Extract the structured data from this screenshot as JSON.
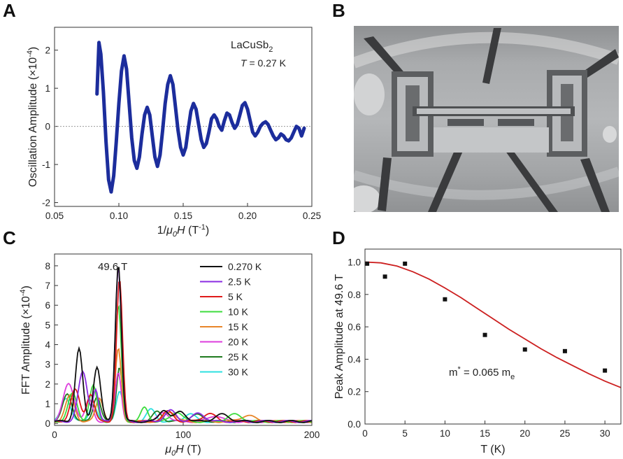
{
  "panels": [
    {
      "label": "A"
    },
    {
      "label": "B"
    },
    {
      "label": "C"
    },
    {
      "label": "D"
    }
  ],
  "colors": {
    "panel_a_line": "#1c2d9c",
    "zero_line": "#999999",
    "fit_line": "#cc1f1f",
    "points": "#111111",
    "sem_background": "#9a9c9e"
  },
  "chart_data": [
    {
      "panel": "A",
      "type": "line",
      "xlabel_parts": [
        "1/",
        "μ",
        "0",
        "H",
        " (T",
        "-1",
        ")"
      ],
      "ylabel_parts": [
        "Oscillation Amplitude (×10",
        "-4",
        ")"
      ],
      "xlim": [
        0.05,
        0.25
      ],
      "ylim": [
        -2.1,
        2.6
      ],
      "xticks": [
        0.05,
        0.1,
        0.15,
        0.2,
        0.25
      ],
      "xtick_labels": [
        "0.05",
        "0.10",
        "0.15",
        "0.20",
        "0.25"
      ],
      "yticks": [
        -2,
        -1,
        0,
        1,
        2
      ],
      "ytick_labels": [
        "-2",
        "-1",
        "0",
        "1",
        "2"
      ],
      "annotations": {
        "compound_parts": [
          "LaCuSb",
          "2"
        ],
        "temp_parts": [
          "T",
          " = 0.27 K"
        ]
      },
      "zero_reference_line": true,
      "series": [
        {
          "x": [
            0.083,
            0.0845,
            0.086,
            0.088,
            0.09,
            0.092,
            0.094,
            0.096,
            0.098,
            0.1,
            0.102,
            0.104,
            0.106,
            0.108,
            0.11,
            0.112,
            0.114,
            0.116,
            0.118,
            0.12,
            0.122,
            0.124,
            0.126,
            0.128,
            0.13,
            0.132,
            0.134,
            0.136,
            0.138,
            0.14,
            0.142,
            0.144,
            0.146,
            0.148,
            0.15,
            0.152,
            0.154,
            0.156,
            0.158,
            0.16,
            0.162,
            0.164,
            0.166,
            0.168,
            0.17,
            0.172,
            0.174,
            0.176,
            0.178,
            0.18,
            0.182,
            0.184,
            0.186,
            0.188,
            0.19,
            0.192,
            0.194,
            0.196,
            0.198,
            0.2,
            0.202,
            0.204,
            0.206,
            0.208,
            0.21,
            0.212,
            0.214,
            0.216,
            0.218,
            0.22,
            0.222,
            0.224,
            0.226,
            0.228,
            0.23,
            0.232,
            0.234,
            0.236,
            0.238,
            0.24,
            0.242,
            0.244
          ],
          "y": [
            0.85,
            2.2,
            1.9,
            0.9,
            -0.4,
            -1.4,
            -1.72,
            -1.3,
            -0.4,
            0.6,
            1.45,
            1.85,
            1.5,
            0.6,
            -0.3,
            -0.9,
            -1.1,
            -0.8,
            -0.2,
            0.3,
            0.5,
            0.3,
            -0.25,
            -0.8,
            -1.05,
            -0.75,
            -0.1,
            0.6,
            1.1,
            1.33,
            1.1,
            0.5,
            -0.1,
            -0.55,
            -0.75,
            -0.55,
            -0.05,
            0.4,
            0.6,
            0.45,
            0.05,
            -0.35,
            -0.55,
            -0.45,
            -0.15,
            0.2,
            0.3,
            0.2,
            0.0,
            -0.1,
            0.15,
            0.35,
            0.3,
            0.1,
            -0.05,
            0.05,
            0.3,
            0.55,
            0.62,
            0.45,
            0.15,
            -0.15,
            -0.25,
            -0.15,
            0.0,
            0.08,
            0.12,
            0.05,
            -0.1,
            -0.25,
            -0.35,
            -0.3,
            -0.2,
            -0.25,
            -0.35,
            -0.38,
            -0.3,
            -0.15,
            0.0,
            -0.05,
            -0.25,
            -0.05
          ]
        }
      ]
    },
    {
      "panel": "C",
      "type": "line",
      "xlabel_parts": [
        "μ",
        "0",
        "H",
        " (T)"
      ],
      "ylabel_parts": [
        "FFT Amplitude (×10",
        "-4",
        ")"
      ],
      "xlim": [
        0,
        200
      ],
      "ylim": [
        -0.1,
        8.6
      ],
      "xticks": [
        0,
        100,
        200
      ],
      "xtick_labels": [
        "0",
        "100",
        "200"
      ],
      "yticks": [
        0,
        1,
        2,
        3,
        4,
        5,
        6,
        7,
        8
      ],
      "ytick_labels": [
        "0",
        "1",
        "2",
        "3",
        "4",
        "5",
        "6",
        "7",
        "8"
      ],
      "peak_label": "49.6 T",
      "legend_position": "top-right",
      "series": [
        {
          "name": "0.270 K",
          "color": "#111111",
          "peaks": [
            [
              19,
              3.7,
              4
            ],
            [
              33,
              2.8,
              4
            ],
            [
              49.6,
              8.0,
              3.3
            ],
            [
              85,
              0.6,
              5
            ],
            [
              98,
              0.5,
              6
            ],
            [
              130,
              0.35,
              8
            ]
          ]
        },
        {
          "name": "2.5 K",
          "color": "#8a2be2",
          "peaks": [
            [
              22,
              2.5,
              5
            ],
            [
              32,
              1.6,
              3
            ],
            [
              49.6,
              7.85,
              3.3
            ],
            [
              90,
              0.55,
              6
            ],
            [
              112,
              0.4,
              7
            ]
          ]
        },
        {
          "name": "5 K",
          "color": "#e01a1a",
          "peaks": [
            [
              16,
              1.6,
              5
            ],
            [
              28,
              1.4,
              4
            ],
            [
              50.5,
              7.2,
              3.3
            ],
            [
              88,
              0.5,
              6
            ],
            [
              120,
              0.4,
              7
            ]
          ]
        },
        {
          "name": "10 K",
          "color": "#3ddc3d",
          "peaks": [
            [
              14,
              1.4,
              5
            ],
            [
              30,
              1.8,
              4
            ],
            [
              49.6,
              5.85,
              3.3
            ],
            [
              70,
              0.7,
              4
            ],
            [
              95,
              0.5,
              6
            ],
            [
              140,
              0.35,
              8
            ]
          ]
        },
        {
          "name": "15 K",
          "color": "#e8862a",
          "peaks": [
            [
              12,
              1.3,
              5
            ],
            [
              35,
              1.2,
              4
            ],
            [
              49.6,
              3.7,
              3.3
            ],
            [
              90,
              0.5,
              6
            ],
            [
              150,
              0.3,
              8
            ]
          ]
        },
        {
          "name": "20 K",
          "color": "#dd3ddd",
          "peaks": [
            [
              11,
              1.9,
              6
            ],
            [
              27,
              1.1,
              4
            ],
            [
              49.6,
              2.5,
              3.3
            ],
            [
              85,
              0.45,
              6
            ],
            [
              125,
              0.3,
              7
            ]
          ]
        },
        {
          "name": "25 K",
          "color": "#1f7a1f",
          "peaks": [
            [
              10,
              1.4,
              5
            ],
            [
              33,
              1.3,
              4
            ],
            [
              50.5,
              2.8,
              3.3
            ],
            [
              80,
              0.5,
              5
            ],
            [
              110,
              0.35,
              7
            ]
          ]
        },
        {
          "name": "30 K",
          "color": "#2ee0e0",
          "peaks": [
            [
              9,
              1.2,
              5
            ],
            [
              30,
              0.9,
              4
            ],
            [
              50.5,
              1.55,
              3.8
            ],
            [
              75,
              0.6,
              5
            ],
            [
              105,
              0.4,
              6
            ]
          ]
        }
      ]
    },
    {
      "panel": "D",
      "type": "scatter",
      "xlabel": "T (K)",
      "ylabel": "Peak Amplitude at 49.6 T",
      "xlim": [
        0,
        32
      ],
      "ylim": [
        0.0,
        1.08
      ],
      "xticks": [
        0,
        5,
        10,
        15,
        20,
        25,
        30
      ],
      "xtick_labels": [
        "0",
        "5",
        "10",
        "15",
        "20",
        "25",
        "30"
      ],
      "yticks": [
        0.0,
        0.2,
        0.4,
        0.6,
        0.8,
        1.0
      ],
      "ytick_labels": [
        "0.0",
        "0.2",
        "0.4",
        "0.6",
        "0.8",
        "1.0"
      ],
      "annotation_parts": [
        "m",
        "*",
        " = 0.065 m",
        "e"
      ],
      "points": {
        "x": [
          0.27,
          2.5,
          5,
          10,
          15,
          20,
          25,
          30
        ],
        "y": [
          0.99,
          0.91,
          0.99,
          0.77,
          0.55,
          0.46,
          0.45,
          0.33
        ]
      },
      "fit": {
        "x": [
          0,
          2,
          4,
          6,
          8,
          10,
          12,
          14,
          16,
          18,
          20,
          22,
          24,
          26,
          28,
          30,
          32
        ],
        "y": [
          1.0,
          0.995,
          0.975,
          0.94,
          0.895,
          0.84,
          0.78,
          0.715,
          0.65,
          0.585,
          0.525,
          0.465,
          0.41,
          0.36,
          0.31,
          0.265,
          0.225
        ]
      }
    }
  ],
  "sem_image": {
    "description_free": true
  }
}
